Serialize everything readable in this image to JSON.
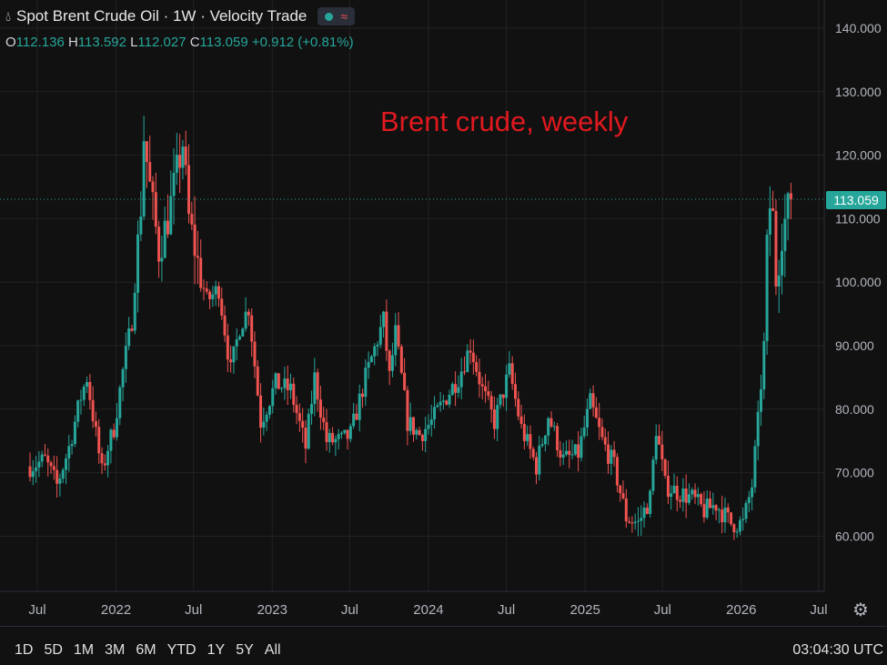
{
  "header": {
    "title": "Spot Brent Crude Oil · 1W · Velocity Trade",
    "ohlc": {
      "o_label": "O",
      "o": "112.136",
      "h_label": "H",
      "h": "113.592",
      "l_label": "L",
      "l": "112.027",
      "c_label": "C",
      "c": "113.059",
      "change": "+0.912 (+0.81%)"
    }
  },
  "annotation": "Brent crude, weekly",
  "last_price_label": "113.059",
  "timeframes": [
    "1D",
    "5D",
    "1M",
    "3M",
    "6M",
    "YTD",
    "1Y",
    "5Y",
    "All"
  ],
  "clock": "03:04:30 UTC",
  "colors": {
    "up": "#26a69a",
    "down": "#ef5350",
    "grid": "#222222",
    "annotation": "#e0191f"
  },
  "icons": {
    "settings": "gear-icon",
    "symbol": "droplet-icon"
  },
  "chart_data": {
    "type": "candlestick",
    "interval": "1W",
    "y_axis": {
      "ylim": [
        50,
        143
      ],
      "ticks": [
        "60.000",
        "70.000",
        "80.000",
        "90.000",
        "100.000",
        "110.000",
        "120.000",
        "130.000",
        "140.000"
      ],
      "tick_values": [
        60,
        70,
        80,
        90,
        100,
        110,
        120,
        130,
        140
      ]
    },
    "x_axis": {
      "labels": [
        "Jul",
        "2022",
        "Jul",
        "2023",
        "Jul",
        "2024",
        "Jul",
        "2025",
        "Jul",
        "2026",
        "Jul"
      ]
    },
    "last_close": 113.059,
    "series": [
      {
        "name": "Spot Brent Crude Oil",
        "start": "2021-06-14",
        "close_anchors": [
          [
            "2021-06-14",
            71
          ],
          [
            "2021-07-19",
            72
          ],
          [
            "2021-08-16",
            68
          ],
          [
            "2021-09-13",
            74
          ],
          [
            "2021-10-11",
            82
          ],
          [
            "2021-10-25",
            85
          ],
          [
            "2021-11-29",
            70
          ],
          [
            "2021-12-13",
            74
          ],
          [
            "2021-12-27",
            77
          ],
          [
            "2022-01-17",
            86
          ],
          [
            "2022-02-07",
            94
          ],
          [
            "2022-02-28",
            112
          ],
          [
            "2022-03-07",
            123
          ],
          [
            "2022-03-21",
            115
          ],
          [
            "2022-04-11",
            105
          ],
          [
            "2022-05-02",
            110
          ],
          [
            "2022-06-06",
            122
          ],
          [
            "2022-06-20",
            110
          ],
          [
            "2022-07-11",
            103
          ],
          [
            "2022-08-01",
            97
          ],
          [
            "2022-08-29",
            99
          ],
          [
            "2022-09-26",
            86
          ],
          [
            "2022-10-17",
            93
          ],
          [
            "2022-11-07",
            96
          ],
          [
            "2022-12-05",
            78
          ],
          [
            "2023-01-09",
            84
          ],
          [
            "2023-02-13",
            83
          ],
          [
            "2023-03-20",
            74
          ],
          [
            "2023-04-10",
            85
          ],
          [
            "2023-05-08",
            75
          ],
          [
            "2023-06-12",
            75
          ],
          [
            "2023-07-03",
            76
          ],
          [
            "2023-08-07",
            85
          ],
          [
            "2023-09-18",
            94
          ],
          [
            "2023-10-02",
            85
          ],
          [
            "2023-10-16",
            92
          ],
          [
            "2023-11-13",
            78
          ],
          [
            "2023-12-11",
            76
          ],
          [
            "2024-01-08",
            78
          ],
          [
            "2024-02-12",
            82
          ],
          [
            "2024-03-11",
            85
          ],
          [
            "2024-04-08",
            90
          ],
          [
            "2024-05-06",
            83
          ],
          [
            "2024-06-03",
            78
          ],
          [
            "2024-07-08",
            86
          ],
          [
            "2024-08-05",
            77
          ],
          [
            "2024-09-09",
            71
          ],
          [
            "2024-10-07",
            79
          ],
          [
            "2024-11-11",
            72
          ],
          [
            "2024-12-16",
            73
          ],
          [
            "2025-01-13",
            81
          ],
          [
            "2025-02-10",
            75
          ],
          [
            "2025-03-10",
            71
          ],
          [
            "2025-04-07",
            63
          ],
          [
            "2025-05-05",
            62
          ],
          [
            "2025-06-02",
            66
          ],
          [
            "2025-06-16",
            77
          ],
          [
            "2025-07-07",
            68
          ],
          [
            "2025-08-04",
            67
          ],
          [
            "2025-09-08",
            66
          ],
          [
            "2025-10-06",
            64
          ],
          [
            "2025-11-03",
            65
          ],
          [
            "2025-12-08",
            62
          ],
          [
            "2026-01-05",
            62
          ],
          [
            "2026-01-26",
            68
          ],
          [
            "2026-02-09",
            78
          ],
          [
            "2026-02-23",
            90
          ],
          [
            "2026-03-02",
            105
          ],
          [
            "2026-03-09",
            112
          ],
          [
            "2026-03-16",
            110
          ],
          [
            "2026-03-23",
            100
          ],
          [
            "2026-04-06",
            108
          ],
          [
            "2026-04-27",
            113.059
          ]
        ]
      }
    ]
  }
}
